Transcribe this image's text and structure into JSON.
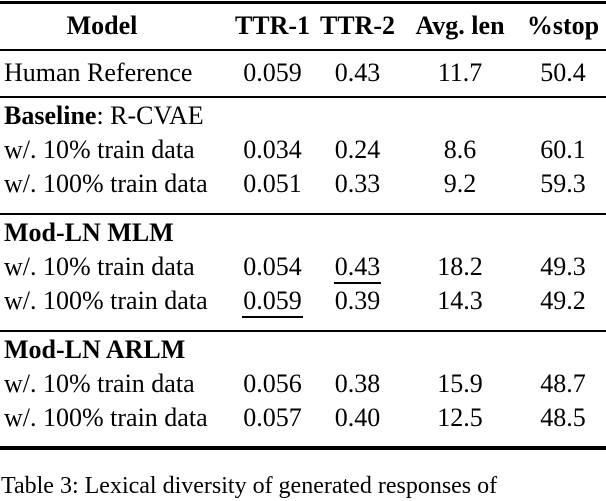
{
  "table": {
    "columns": [
      "Model",
      "TTR-1",
      "TTR-2",
      "Avg. len",
      "%stop"
    ],
    "human_row": {
      "label": "Human Reference",
      "values": [
        "0.059",
        "0.43",
        "11.7",
        "50.4"
      ]
    },
    "sections": [
      {
        "title_bold": "Baseline",
        "title_rest": ": R-CVAE",
        "rows": [
          {
            "label": "w/. 10% train data",
            "values": [
              "0.034",
              "0.24",
              "8.6",
              "60.1"
            ]
          },
          {
            "label": "w/. 100% train data",
            "values": [
              "0.051",
              "0.33",
              "9.2",
              "59.3"
            ]
          }
        ]
      },
      {
        "title_bold": "Mod-LN MLM",
        "title_rest": "",
        "rows": [
          {
            "label": "w/. 10% train data",
            "values": [
              "0.054",
              "0.43",
              "18.2",
              "49.3"
            ],
            "underlined_col": 1
          },
          {
            "label": "w/. 100% train data",
            "values": [
              "0.059",
              "0.39",
              "14.3",
              "49.2"
            ],
            "underlined_col": 0
          }
        ]
      },
      {
        "title_bold": "Mod-LN ARLM",
        "title_rest": "",
        "rows": [
          {
            "label": "w/. 10% train data",
            "values": [
              "0.056",
              "0.38",
              "15.9",
              "48.7"
            ]
          },
          {
            "label": "w/. 100% train data",
            "values": [
              "0.057",
              "0.40",
              "12.5",
              "48.5"
            ]
          }
        ]
      }
    ]
  },
  "caption": {
    "text": "Table 3: Lexical diversity of generated responses of"
  }
}
